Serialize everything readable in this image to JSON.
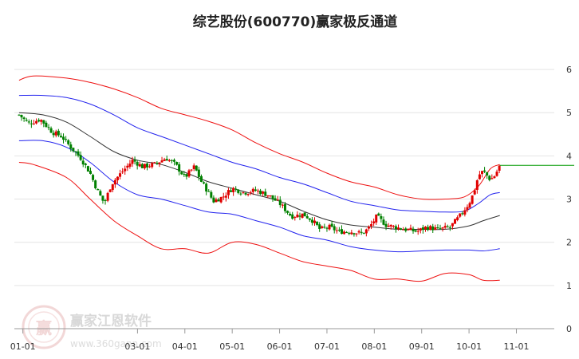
{
  "chart_data": {
    "type": "candlestick",
    "title": "综艺股份(600770)赢家极反通道",
    "ylim": [
      0,
      6.5
    ],
    "yticks": [
      {
        "value": 0,
        "label": "0"
      },
      {
        "value": 1,
        "label": "1"
      },
      {
        "value": 2,
        "label": "2"
      },
      {
        "value": 3,
        "label": "3"
      },
      {
        "value": 4,
        "label": "4"
      },
      {
        "value": 5,
        "label": "5"
      },
      {
        "value": 6,
        "label": "6"
      }
    ],
    "xticks": [
      {
        "t": 0.08,
        "label": "01-01"
      },
      {
        "t": 2.5,
        "label": "03-01"
      },
      {
        "t": 3.5,
        "label": "04-01"
      },
      {
        "t": 4.5,
        "label": "05-01"
      },
      {
        "t": 5.5,
        "label": "06-01"
      },
      {
        "t": 6.5,
        "label": "07-01"
      },
      {
        "t": 7.5,
        "label": "08-01"
      },
      {
        "t": 8.5,
        "label": "09-01"
      },
      {
        "t": 9.5,
        "label": "10-01"
      },
      {
        "t": 10.5,
        "label": "11-01"
      }
    ],
    "xlim": [
      -0.1,
      11.3
    ],
    "last_close": 3.78,
    "colors": {
      "up": "#e00000",
      "down": "#008000",
      "mid": "#333333",
      "inner": "#2222ee",
      "outer": "#ee1111",
      "last_close": "#009900"
    },
    "close_path": [
      [
        0.0,
        4.95
      ],
      [
        0.2,
        4.75
      ],
      [
        0.45,
        4.85
      ],
      [
        0.7,
        4.55
      ],
      [
        0.9,
        4.45
      ],
      [
        1.05,
        4.25
      ],
      [
        1.3,
        3.95
      ],
      [
        1.5,
        3.6
      ],
      [
        1.65,
        3.2
      ],
      [
        1.8,
        2.9
      ],
      [
        1.95,
        3.35
      ],
      [
        2.15,
        3.6
      ],
      [
        2.4,
        3.9
      ],
      [
        2.6,
        3.75
      ],
      [
        2.85,
        3.8
      ],
      [
        3.1,
        3.95
      ],
      [
        3.3,
        3.8
      ],
      [
        3.5,
        3.5
      ],
      [
        3.7,
        3.75
      ],
      [
        3.85,
        3.4
      ],
      [
        4.0,
        3.15
      ],
      [
        4.1,
        2.95
      ],
      [
        4.3,
        3.05
      ],
      [
        4.5,
        3.25
      ],
      [
        4.75,
        3.15
      ],
      [
        5.0,
        3.2
      ],
      [
        5.25,
        3.1
      ],
      [
        5.5,
        2.9
      ],
      [
        5.75,
        2.6
      ],
      [
        6.0,
        2.65
      ],
      [
        6.2,
        2.5
      ],
      [
        6.35,
        2.3
      ],
      [
        6.55,
        2.35
      ],
      [
        6.75,
        2.25
      ],
      [
        7.0,
        2.25
      ],
      [
        7.25,
        2.2
      ],
      [
        7.4,
        2.35
      ],
      [
        7.55,
        2.6
      ],
      [
        7.75,
        2.4
      ],
      [
        7.95,
        2.35
      ],
      [
        8.15,
        2.3
      ],
      [
        8.4,
        2.25
      ],
      [
        8.6,
        2.35
      ],
      [
        8.85,
        2.3
      ],
      [
        9.1,
        2.35
      ],
      [
        9.3,
        2.6
      ],
      [
        9.5,
        2.9
      ],
      [
        9.6,
        3.15
      ],
      [
        9.7,
        3.55
      ],
      [
        9.8,
        3.65
      ],
      [
        9.95,
        3.45
      ],
      [
        10.05,
        3.55
      ],
      [
        10.15,
        3.78
      ]
    ],
    "bands": {
      "mid": [
        [
          0.0,
          5.0
        ],
        [
          0.5,
          4.95
        ],
        [
          1.0,
          4.78
        ],
        [
          1.5,
          4.45
        ],
        [
          2.0,
          4.1
        ],
        [
          2.5,
          3.9
        ],
        [
          3.0,
          3.8
        ],
        [
          3.5,
          3.62
        ],
        [
          4.0,
          3.4
        ],
        [
          4.5,
          3.25
        ],
        [
          5.0,
          3.1
        ],
        [
          5.5,
          2.95
        ],
        [
          6.0,
          2.72
        ],
        [
          6.5,
          2.52
        ],
        [
          7.0,
          2.4
        ],
        [
          7.5,
          2.35
        ],
        [
          8.0,
          2.3
        ],
        [
          8.5,
          2.3
        ],
        [
          9.0,
          2.3
        ],
        [
          9.5,
          2.38
        ],
        [
          9.8,
          2.5
        ],
        [
          10.15,
          2.62
        ]
      ],
      "upper_inner": [
        [
          0.0,
          5.4
        ],
        [
          0.5,
          5.4
        ],
        [
          1.0,
          5.35
        ],
        [
          1.5,
          5.2
        ],
        [
          2.0,
          4.95
        ],
        [
          2.5,
          4.65
        ],
        [
          3.0,
          4.45
        ],
        [
          3.5,
          4.25
        ],
        [
          4.0,
          4.05
        ],
        [
          4.5,
          3.85
        ],
        [
          5.0,
          3.7
        ],
        [
          5.5,
          3.5
        ],
        [
          6.0,
          3.35
        ],
        [
          6.5,
          3.15
        ],
        [
          7.0,
          2.95
        ],
        [
          7.5,
          2.85
        ],
        [
          8.0,
          2.75
        ],
        [
          8.5,
          2.72
        ],
        [
          9.0,
          2.7
        ],
        [
          9.4,
          2.72
        ],
        [
          9.7,
          2.9
        ],
        [
          9.95,
          3.1
        ],
        [
          10.15,
          3.15
        ]
      ],
      "lower_inner": [
        [
          0.0,
          4.35
        ],
        [
          0.5,
          4.35
        ],
        [
          1.0,
          4.2
        ],
        [
          1.5,
          3.85
        ],
        [
          2.0,
          3.4
        ],
        [
          2.5,
          3.1
        ],
        [
          3.0,
          3.0
        ],
        [
          3.5,
          2.85
        ],
        [
          4.0,
          2.7
        ],
        [
          4.5,
          2.65
        ],
        [
          5.0,
          2.5
        ],
        [
          5.5,
          2.35
        ],
        [
          6.0,
          2.15
        ],
        [
          6.5,
          2.05
        ],
        [
          7.0,
          1.9
        ],
        [
          7.5,
          1.82
        ],
        [
          8.0,
          1.78
        ],
        [
          8.5,
          1.8
        ],
        [
          9.0,
          1.82
        ],
        [
          9.5,
          1.82
        ],
        [
          9.8,
          1.8
        ],
        [
          10.15,
          1.85
        ]
      ],
      "upper_outer": [
        [
          0.0,
          5.75
        ],
        [
          0.3,
          5.85
        ],
        [
          1.0,
          5.8
        ],
        [
          1.5,
          5.7
        ],
        [
          2.0,
          5.55
        ],
        [
          2.5,
          5.35
        ],
        [
          3.0,
          5.1
        ],
        [
          3.5,
          4.95
        ],
        [
          4.0,
          4.8
        ],
        [
          4.5,
          4.6
        ],
        [
          5.0,
          4.3
        ],
        [
          5.5,
          4.05
        ],
        [
          6.0,
          3.85
        ],
        [
          6.5,
          3.6
        ],
        [
          7.0,
          3.4
        ],
        [
          7.5,
          3.28
        ],
        [
          8.0,
          3.1
        ],
        [
          8.5,
          3.0
        ],
        [
          9.0,
          3.0
        ],
        [
          9.4,
          3.05
        ],
        [
          9.7,
          3.3
        ],
        [
          9.95,
          3.7
        ],
        [
          10.15,
          3.8
        ]
      ],
      "lower_outer": [
        [
          0.0,
          3.85
        ],
        [
          0.3,
          3.8
        ],
        [
          1.0,
          3.5
        ],
        [
          1.5,
          3.0
        ],
        [
          2.0,
          2.5
        ],
        [
          2.5,
          2.15
        ],
        [
          3.0,
          1.85
        ],
        [
          3.5,
          1.85
        ],
        [
          4.0,
          1.75
        ],
        [
          4.5,
          2.0
        ],
        [
          5.0,
          1.95
        ],
        [
          5.5,
          1.75
        ],
        [
          6.0,
          1.55
        ],
        [
          6.5,
          1.45
        ],
        [
          7.0,
          1.35
        ],
        [
          7.5,
          1.15
        ],
        [
          8.0,
          1.15
        ],
        [
          8.5,
          1.1
        ],
        [
          9.0,
          1.28
        ],
        [
          9.5,
          1.25
        ],
        [
          9.8,
          1.12
        ],
        [
          10.15,
          1.12
        ]
      ]
    }
  },
  "watermark": {
    "brand": "赢家江恩软件",
    "site": "www.360gann.com",
    "logo_text": "赢"
  }
}
